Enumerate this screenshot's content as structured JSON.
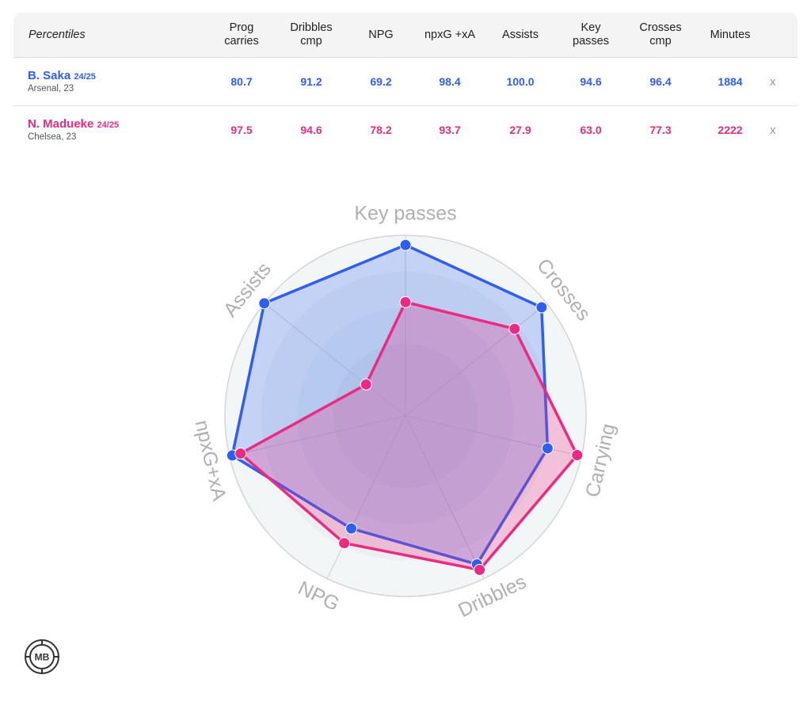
{
  "table": {
    "title": "Percentiles",
    "columns": [
      "Prog\ncarries",
      "Dribbles\ncmp",
      "NPG",
      "npxG +xA",
      "Assists",
      "Key\npasses",
      "Crosses\ncmp",
      "Minutes"
    ],
    "remove_label": "x",
    "players": [
      {
        "name": "B. Saka",
        "season": "24/25",
        "club": "Arsenal, 23",
        "values": [
          "80.7",
          "91.2",
          "69.2",
          "98.4",
          "100.0",
          "94.6",
          "96.4",
          "1884"
        ]
      },
      {
        "name": "N. Madueke",
        "season": "24/25",
        "club": "Chelsea, 23",
        "values": [
          "97.5",
          "94.6",
          "78.2",
          "93.7",
          "27.9",
          "63.0",
          "77.3",
          "2222"
        ]
      }
    ]
  },
  "colors": {
    "saka": "#2f5ff0",
    "madueke": "#ec2a82",
    "axis_label": "#b0b0b0"
  },
  "chart_data": {
    "type": "radar",
    "axes": [
      "Key passes",
      "Crosses",
      "Carrying",
      "Dribbles",
      "NPG",
      "npxG+xA",
      "Assists"
    ],
    "range": [
      0,
      100
    ],
    "series": [
      {
        "name": "B. Saka",
        "values": [
          94.6,
          96.4,
          80.7,
          91.2,
          69.2,
          98.4,
          100.0
        ]
      },
      {
        "name": "N. Madueke",
        "values": [
          63.0,
          77.3,
          97.5,
          94.6,
          78.2,
          93.7,
          27.9
        ]
      }
    ]
  },
  "logo": {
    "text": "MB",
    "icon": "mb-logo-icon"
  }
}
